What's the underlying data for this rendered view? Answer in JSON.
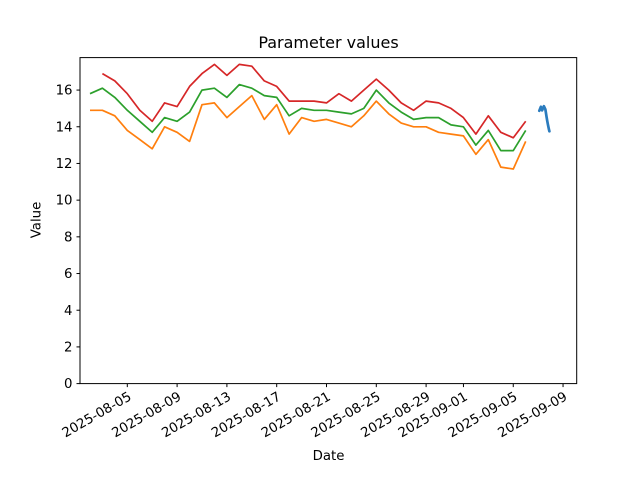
{
  "chart_data": {
    "type": "line",
    "title": "Parameter values",
    "xlabel": "Date",
    "ylabel": "Value",
    "grid": false,
    "legend": null,
    "ylim": [
      0,
      17.77
    ],
    "yticks": [
      0,
      2,
      4,
      6,
      8,
      10,
      12,
      14,
      16
    ],
    "xticks": [
      "2025-08-05",
      "2025-08-09",
      "2025-08-13",
      "2025-08-17",
      "2025-08-21",
      "2025-08-25",
      "2025-08-29",
      "2025-09-01",
      "2025-09-05",
      "2025-09-09"
    ],
    "x": [
      "2025-08-02",
      "2025-08-03",
      "2025-08-04",
      "2025-08-05",
      "2025-08-06",
      "2025-08-07",
      "2025-08-08",
      "2025-08-09",
      "2025-08-10",
      "2025-08-11",
      "2025-08-12",
      "2025-08-13",
      "2025-08-14",
      "2025-08-15",
      "2025-08-16",
      "2025-08-17",
      "2025-08-18",
      "2025-08-19",
      "2025-08-20",
      "2025-08-21",
      "2025-08-22",
      "2025-08-23",
      "2025-08-24",
      "2025-08-25",
      "2025-08-26",
      "2025-08-27",
      "2025-08-28",
      "2025-08-29",
      "2025-08-30",
      "2025-08-31",
      "2025-09-01",
      "2025-09-02",
      "2025-09-03",
      "2025-09-04",
      "2025-09-05",
      "2025-09-06"
    ],
    "series": [
      {
        "name": "red",
        "color": "#d62728",
        "values": [
          null,
          16.9,
          16.5,
          15.8,
          14.9,
          14.3,
          15.3,
          15.1,
          16.2,
          16.9,
          17.4,
          16.8,
          17.4,
          17.3,
          16.5,
          16.2,
          15.4,
          15.4,
          15.4,
          15.3,
          15.8,
          15.4,
          16.0,
          16.6,
          16.0,
          15.3,
          14.9,
          15.4,
          15.3,
          15.0,
          14.5,
          13.6,
          14.6,
          13.7,
          13.4,
          14.3
        ]
      },
      {
        "name": "green",
        "color": "#2ca02c",
        "values": [
          15.8,
          16.1,
          15.6,
          14.9,
          14.3,
          13.7,
          14.5,
          14.3,
          14.8,
          16.0,
          16.1,
          15.6,
          16.3,
          16.1,
          15.7,
          15.6,
          14.6,
          15.0,
          14.9,
          14.9,
          14.8,
          14.7,
          15.0,
          16.0,
          15.3,
          14.8,
          14.4,
          14.5,
          14.5,
          14.1,
          14.0,
          13.0,
          13.8,
          12.7,
          12.7,
          13.8
        ]
      },
      {
        "name": "orange",
        "color": "#ff7f0e",
        "values": [
          14.9,
          14.9,
          14.6,
          13.8,
          13.3,
          12.8,
          14.0,
          13.7,
          13.2,
          15.2,
          15.3,
          14.5,
          15.1,
          15.7,
          14.4,
          15.2,
          13.6,
          14.5,
          14.3,
          14.4,
          14.2,
          14.0,
          14.6,
          15.4,
          14.7,
          14.2,
          14.0,
          14.0,
          13.7,
          13.6,
          13.5,
          12.5,
          13.3,
          11.8,
          11.7,
          13.2
        ]
      }
    ]
  },
  "annotation": {
    "name": "handwritten pen squiggle",
    "color": "#2b7cbe"
  },
  "axis": {
    "spine_color": "#000000",
    "tick_color": "#000000"
  }
}
